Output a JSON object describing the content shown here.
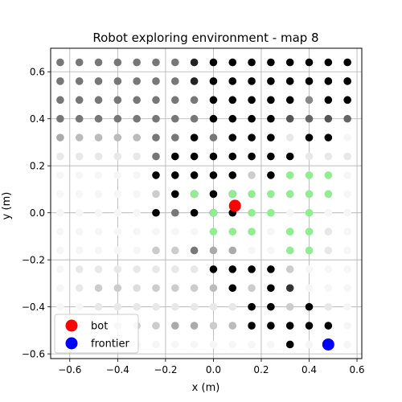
{
  "chart_data": {
    "type": "scatter",
    "title": "Robot exploring environment - map 8",
    "xlabel": "x (m)",
    "ylabel": "y (m)",
    "xlim": [
      -0.68,
      0.62
    ],
    "ylim": [
      -0.62,
      0.7
    ],
    "xticks": [
      -0.6,
      -0.4,
      -0.2,
      0.0,
      0.2,
      0.4,
      0.6
    ],
    "yticks": [
      -0.6,
      -0.4,
      -0.2,
      0.0,
      0.2,
      0.4,
      0.6
    ],
    "xtick_labels": [
      "−0.6",
      "−0.4",
      "−0.2",
      "0.0",
      "0.2",
      "0.4",
      "0.6"
    ],
    "ytick_labels": [
      "−0.6",
      "−0.4",
      "−0.2",
      "0.0",
      "0.2",
      "0.4",
      "0.6"
    ],
    "grid": true,
    "legend_position": "lower-left",
    "grid_x": [
      -0.64,
      -0.56,
      -0.48,
      -0.4,
      -0.32,
      -0.24,
      -0.16,
      -0.08,
      0.0,
      0.08,
      0.16,
      0.24,
      0.32,
      0.4,
      0.48,
      0.56
    ],
    "grid_y": [
      0.64,
      0.56,
      0.48,
      0.4,
      0.32,
      0.24,
      0.16,
      0.08,
      0.0,
      -0.08,
      -0.16,
      -0.24,
      -0.32,
      -0.4,
      -0.48,
      -0.56
    ],
    "cell_gray_levels": [
      "7777777200000000",
      "7777777200000000",
      "7777777700000800",
      "7777777700005656",
      "ABBBB7707000E00F",
      "EEEEE70000000EEE",
      "FFFFF00000C0EEEF",
      "FFFFFC0000FFEEEF",
      "FFFFF07000FFFFFF",
      "FFFFFFFFFFFFEEEF",
      "FFFFFCC7AAFFEEEF",
      "FEEEEEEE0000CFFF",
      "FECCDCCCB0C03FFF",
      "FFEEEEEEEE00C0EF",
      "FFCCCCAACB00000F",
      "FFFFFFFFFFFF0FFF"
    ],
    "gray_level_key": "hex digit per cell, 0 = black (#000) to F = nearly white (#f7f7f7)",
    "series": [
      {
        "name": "bot",
        "color": "#ff0000",
        "points": [
          [
            0.09,
            0.03
          ]
        ]
      },
      {
        "name": "frontier",
        "color": "#0000ff",
        "points": [
          [
            0.48,
            -0.56
          ]
        ]
      },
      {
        "color": "#90ee90",
        "points": [
          [
            0.32,
            0.16
          ],
          [
            0.4,
            0.16
          ],
          [
            0.48,
            0.16
          ],
          [
            -0.08,
            0.08
          ],
          [
            0.08,
            0.08
          ],
          [
            0.16,
            0.08
          ],
          [
            0.24,
            0.08
          ],
          [
            0.32,
            0.08
          ],
          [
            0.4,
            0.08
          ],
          [
            0.48,
            0.08
          ],
          [
            0.0,
            0.0
          ],
          [
            0.16,
            0.0
          ],
          [
            0.24,
            0.0
          ],
          [
            0.4,
            0.0
          ],
          [
            0.0,
            -0.08
          ],
          [
            0.08,
            -0.08
          ],
          [
            0.16,
            -0.08
          ],
          [
            0.32,
            -0.08
          ],
          [
            0.4,
            -0.08
          ],
          [
            0.32,
            -0.16
          ],
          [
            0.4,
            -0.16
          ]
        ]
      }
    ]
  },
  "legend": {
    "items": [
      {
        "label": "bot",
        "color": "#ff0000"
      },
      {
        "label": "frontier",
        "color": "#0000ff"
      }
    ]
  }
}
